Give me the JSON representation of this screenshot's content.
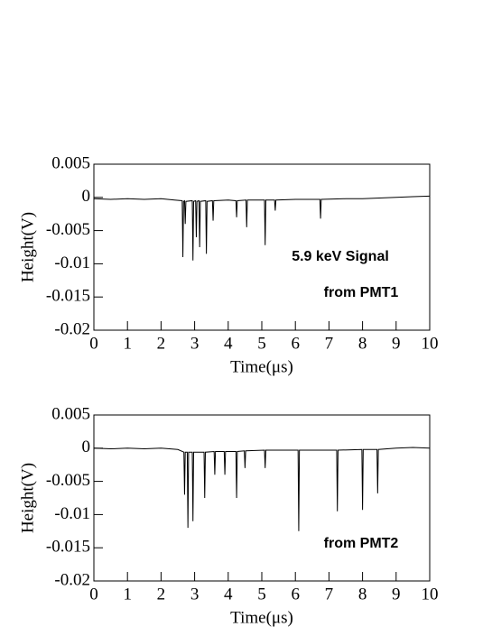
{
  "chart_data": [
    {
      "type": "line",
      "xlabel": "Time(μs)",
      "ylabel": "Height(V)",
      "annotations": [
        "5.9 keV Signal",
        "from PMT1"
      ],
      "xlim": [
        0,
        10
      ],
      "ylim": [
        -0.02,
        0.005
      ],
      "xticks": [
        0,
        1,
        2,
        3,
        4,
        5,
        6,
        7,
        8,
        9,
        10
      ],
      "yticks": [
        0.005,
        0,
        -0.005,
        -0.01,
        -0.015,
        -0.02
      ],
      "x": [
        0,
        0.5,
        1,
        1.5,
        2,
        2.4,
        2.63,
        2.65,
        2.67,
        2.7,
        2.72,
        2.74,
        2.93,
        2.95,
        2.97,
        3.03,
        3.05,
        3.07,
        3.13,
        3.15,
        3.17,
        3.33,
        3.35,
        3.37,
        3.53,
        3.55,
        3.57,
        4,
        4.23,
        4.25,
        4.27,
        4.53,
        4.55,
        4.57,
        5.08,
        5.1,
        5.12,
        5.38,
        5.4,
        5.42,
        6,
        6.73,
        6.75,
        6.77,
        7.5,
        8,
        8.5,
        9,
        9.5,
        10
      ],
      "series": [
        {
          "color": "#000000",
          "values": [
            -0.0002,
            -0.0003,
            -0.0002,
            -0.0003,
            -0.0002,
            -0.0004,
            -0.0005,
            -0.009,
            -0.0006,
            -0.0005,
            -0.004,
            -0.0006,
            -0.0005,
            -0.0095,
            -0.0006,
            -0.0005,
            -0.006,
            -0.0006,
            -0.0005,
            -0.0075,
            -0.0006,
            -0.0005,
            -0.0085,
            -0.0006,
            -0.0005,
            -0.0035,
            -0.0005,
            -0.0004,
            -0.0005,
            -0.003,
            -0.0005,
            -0.0004,
            -0.0045,
            -0.0004,
            -0.0004,
            -0.0072,
            -0.0004,
            -0.0004,
            -0.002,
            -0.0004,
            -0.0003,
            -0.0003,
            -0.0032,
            -0.0003,
            -0.0002,
            -0.0002,
            -0.0001,
            0,
            0.0001,
            0.0002
          ]
        }
      ]
    },
    {
      "type": "line",
      "xlabel": "Time(μs)",
      "ylabel": "Height(V)",
      "annotations": [
        "from PMT2"
      ],
      "xlim": [
        0,
        10
      ],
      "ylim": [
        -0.02,
        0.005
      ],
      "xticks": [
        0,
        1,
        2,
        3,
        4,
        5,
        6,
        7,
        8,
        9,
        10
      ],
      "yticks": [
        0.005,
        0,
        -0.005,
        -0.01,
        -0.015,
        -0.02
      ],
      "x": [
        0,
        0.5,
        1,
        1.5,
        2,
        2.5,
        2.68,
        2.7,
        2.72,
        2.78,
        2.8,
        2.82,
        2.93,
        2.95,
        2.97,
        3.28,
        3.3,
        3.32,
        3.58,
        3.6,
        3.62,
        3.88,
        3.9,
        3.92,
        4.23,
        4.25,
        4.27,
        4.48,
        4.5,
        4.52,
        5.08,
        5.1,
        5.12,
        6.08,
        6.1,
        6.12,
        7.23,
        7.25,
        7.27,
        7.98,
        8,
        8.02,
        8.43,
        8.45,
        8.47,
        9,
        9.5,
        10
      ],
      "series": [
        {
          "color": "#000000",
          "values": [
            0,
            -0.0001,
            0,
            -0.0001,
            0,
            -0.0002,
            -0.0006,
            -0.007,
            -0.0006,
            -0.0006,
            -0.012,
            -0.0006,
            -0.0006,
            -0.011,
            -0.0006,
            -0.0006,
            -0.0075,
            -0.0006,
            -0.0005,
            -0.004,
            -0.0005,
            -0.0005,
            -0.004,
            -0.0005,
            -0.0005,
            -0.0075,
            -0.0005,
            -0.0004,
            -0.003,
            -0.0004,
            -0.0003,
            -0.003,
            -0.0003,
            -0.0003,
            -0.0125,
            -0.0003,
            -0.0003,
            -0.0095,
            -0.0003,
            -0.0002,
            -0.0093,
            -0.0002,
            -0.0002,
            -0.0068,
            -0.0002,
            0,
            0.0001,
            0
          ]
        }
      ]
    }
  ]
}
